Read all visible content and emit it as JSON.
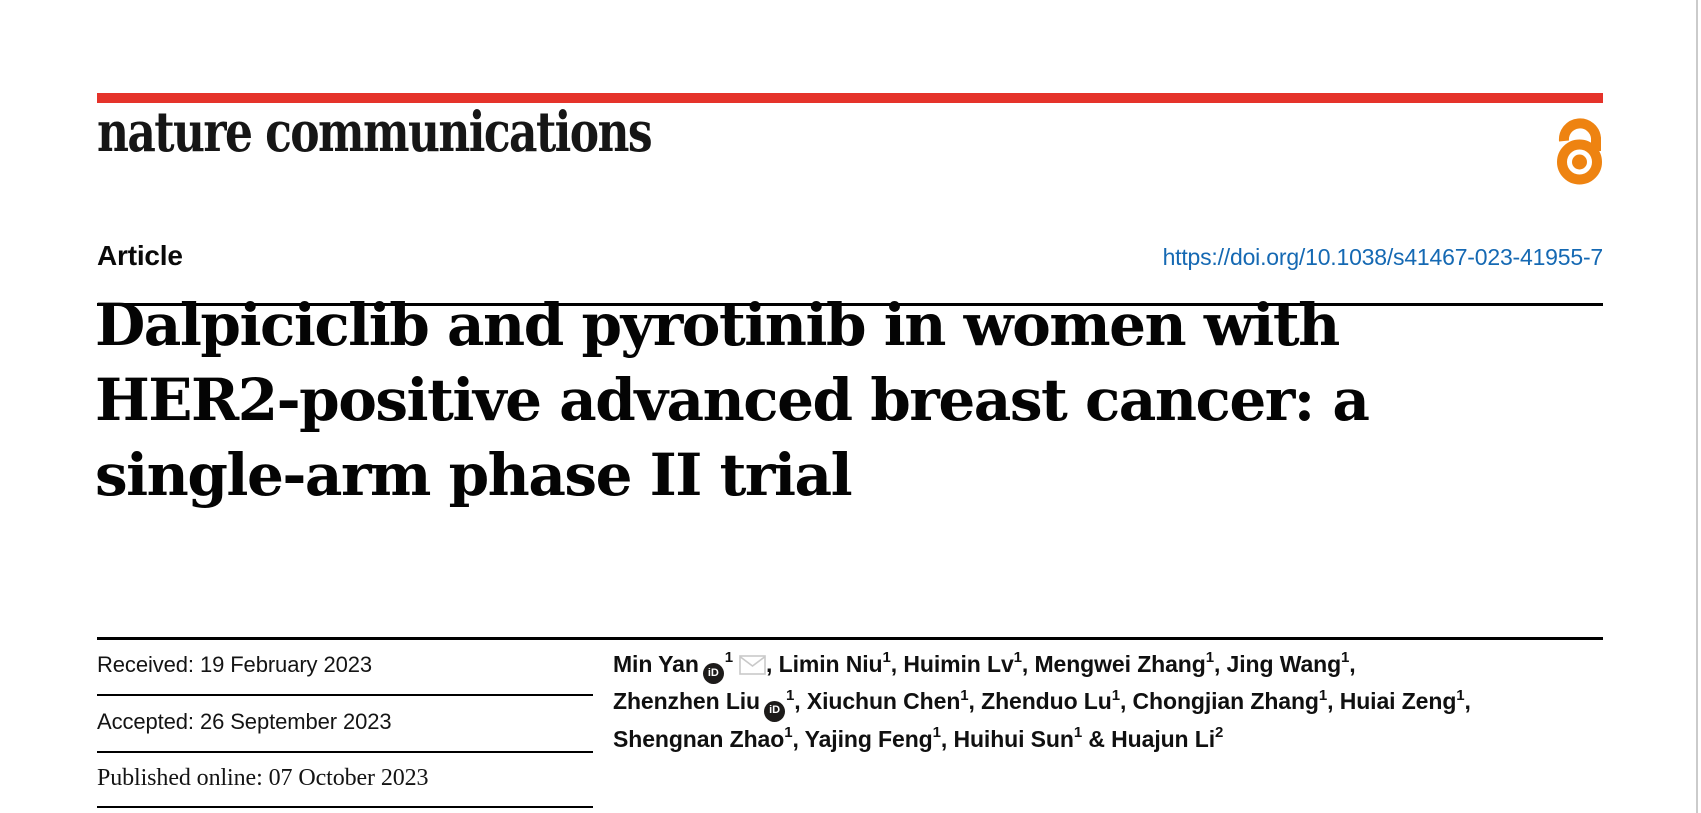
{
  "brand": {
    "logo_text": "nature communications",
    "accent_color": "#e5332a",
    "open_access_color": "#ee8311"
  },
  "header": {
    "article_label": "Article",
    "doi": "https://doi.org/10.1038/s41467-023-41955-7",
    "doi_color": "#1569b3"
  },
  "title": {
    "lines": [
      "Dalpiciclib and pyrotinib in women with",
      "HER2-positive advanced breast cancer: a",
      "single-arm phase II trial"
    ]
  },
  "dates": [
    {
      "label": "Received:",
      "value": "19 February 2023"
    },
    {
      "label": "Accepted:",
      "value": "26 September 2023"
    },
    {
      "label": "Published online:",
      "value": "07 October 2023"
    }
  ],
  "authors": {
    "lines": [
      [
        {
          "name": "Min Yan",
          "orcid": true,
          "sup": "1",
          "email": true,
          "post": ", "
        },
        {
          "name": "Limin Niu",
          "sup": "1",
          "post": ", "
        },
        {
          "name": "Huimin Lv",
          "sup": "1",
          "post": ", "
        },
        {
          "name": "Mengwei Zhang",
          "sup": "1",
          "post": ", "
        },
        {
          "name": "Jing Wang",
          "sup": "1",
          "post": ","
        }
      ],
      [
        {
          "name": "Zhenzhen Liu",
          "orcid": true,
          "sup": "1",
          "post": ", "
        },
        {
          "name": "Xiuchun Chen",
          "sup": "1",
          "post": ", "
        },
        {
          "name": "Zhenduo Lu",
          "sup": "1",
          "post": ", "
        },
        {
          "name": "Chongjian Zhang",
          "sup": "1",
          "post": ", "
        },
        {
          "name": "Huiai Zeng",
          "sup": "1",
          "post": ","
        }
      ],
      [
        {
          "name": "Shengnan Zhao",
          "sup": "1",
          "post": ", "
        },
        {
          "name": "Yajing Feng",
          "sup": "1",
          "post": ", "
        },
        {
          "name": "Huihui Sun",
          "sup": "1",
          "post": " & "
        },
        {
          "name": "Huajun Li",
          "sup": "2",
          "post": ""
        }
      ]
    ]
  },
  "icons": {
    "orcid_text": "iD",
    "email_icon": "envelope-icon",
    "open_access_icon": "open-lock-icon"
  }
}
